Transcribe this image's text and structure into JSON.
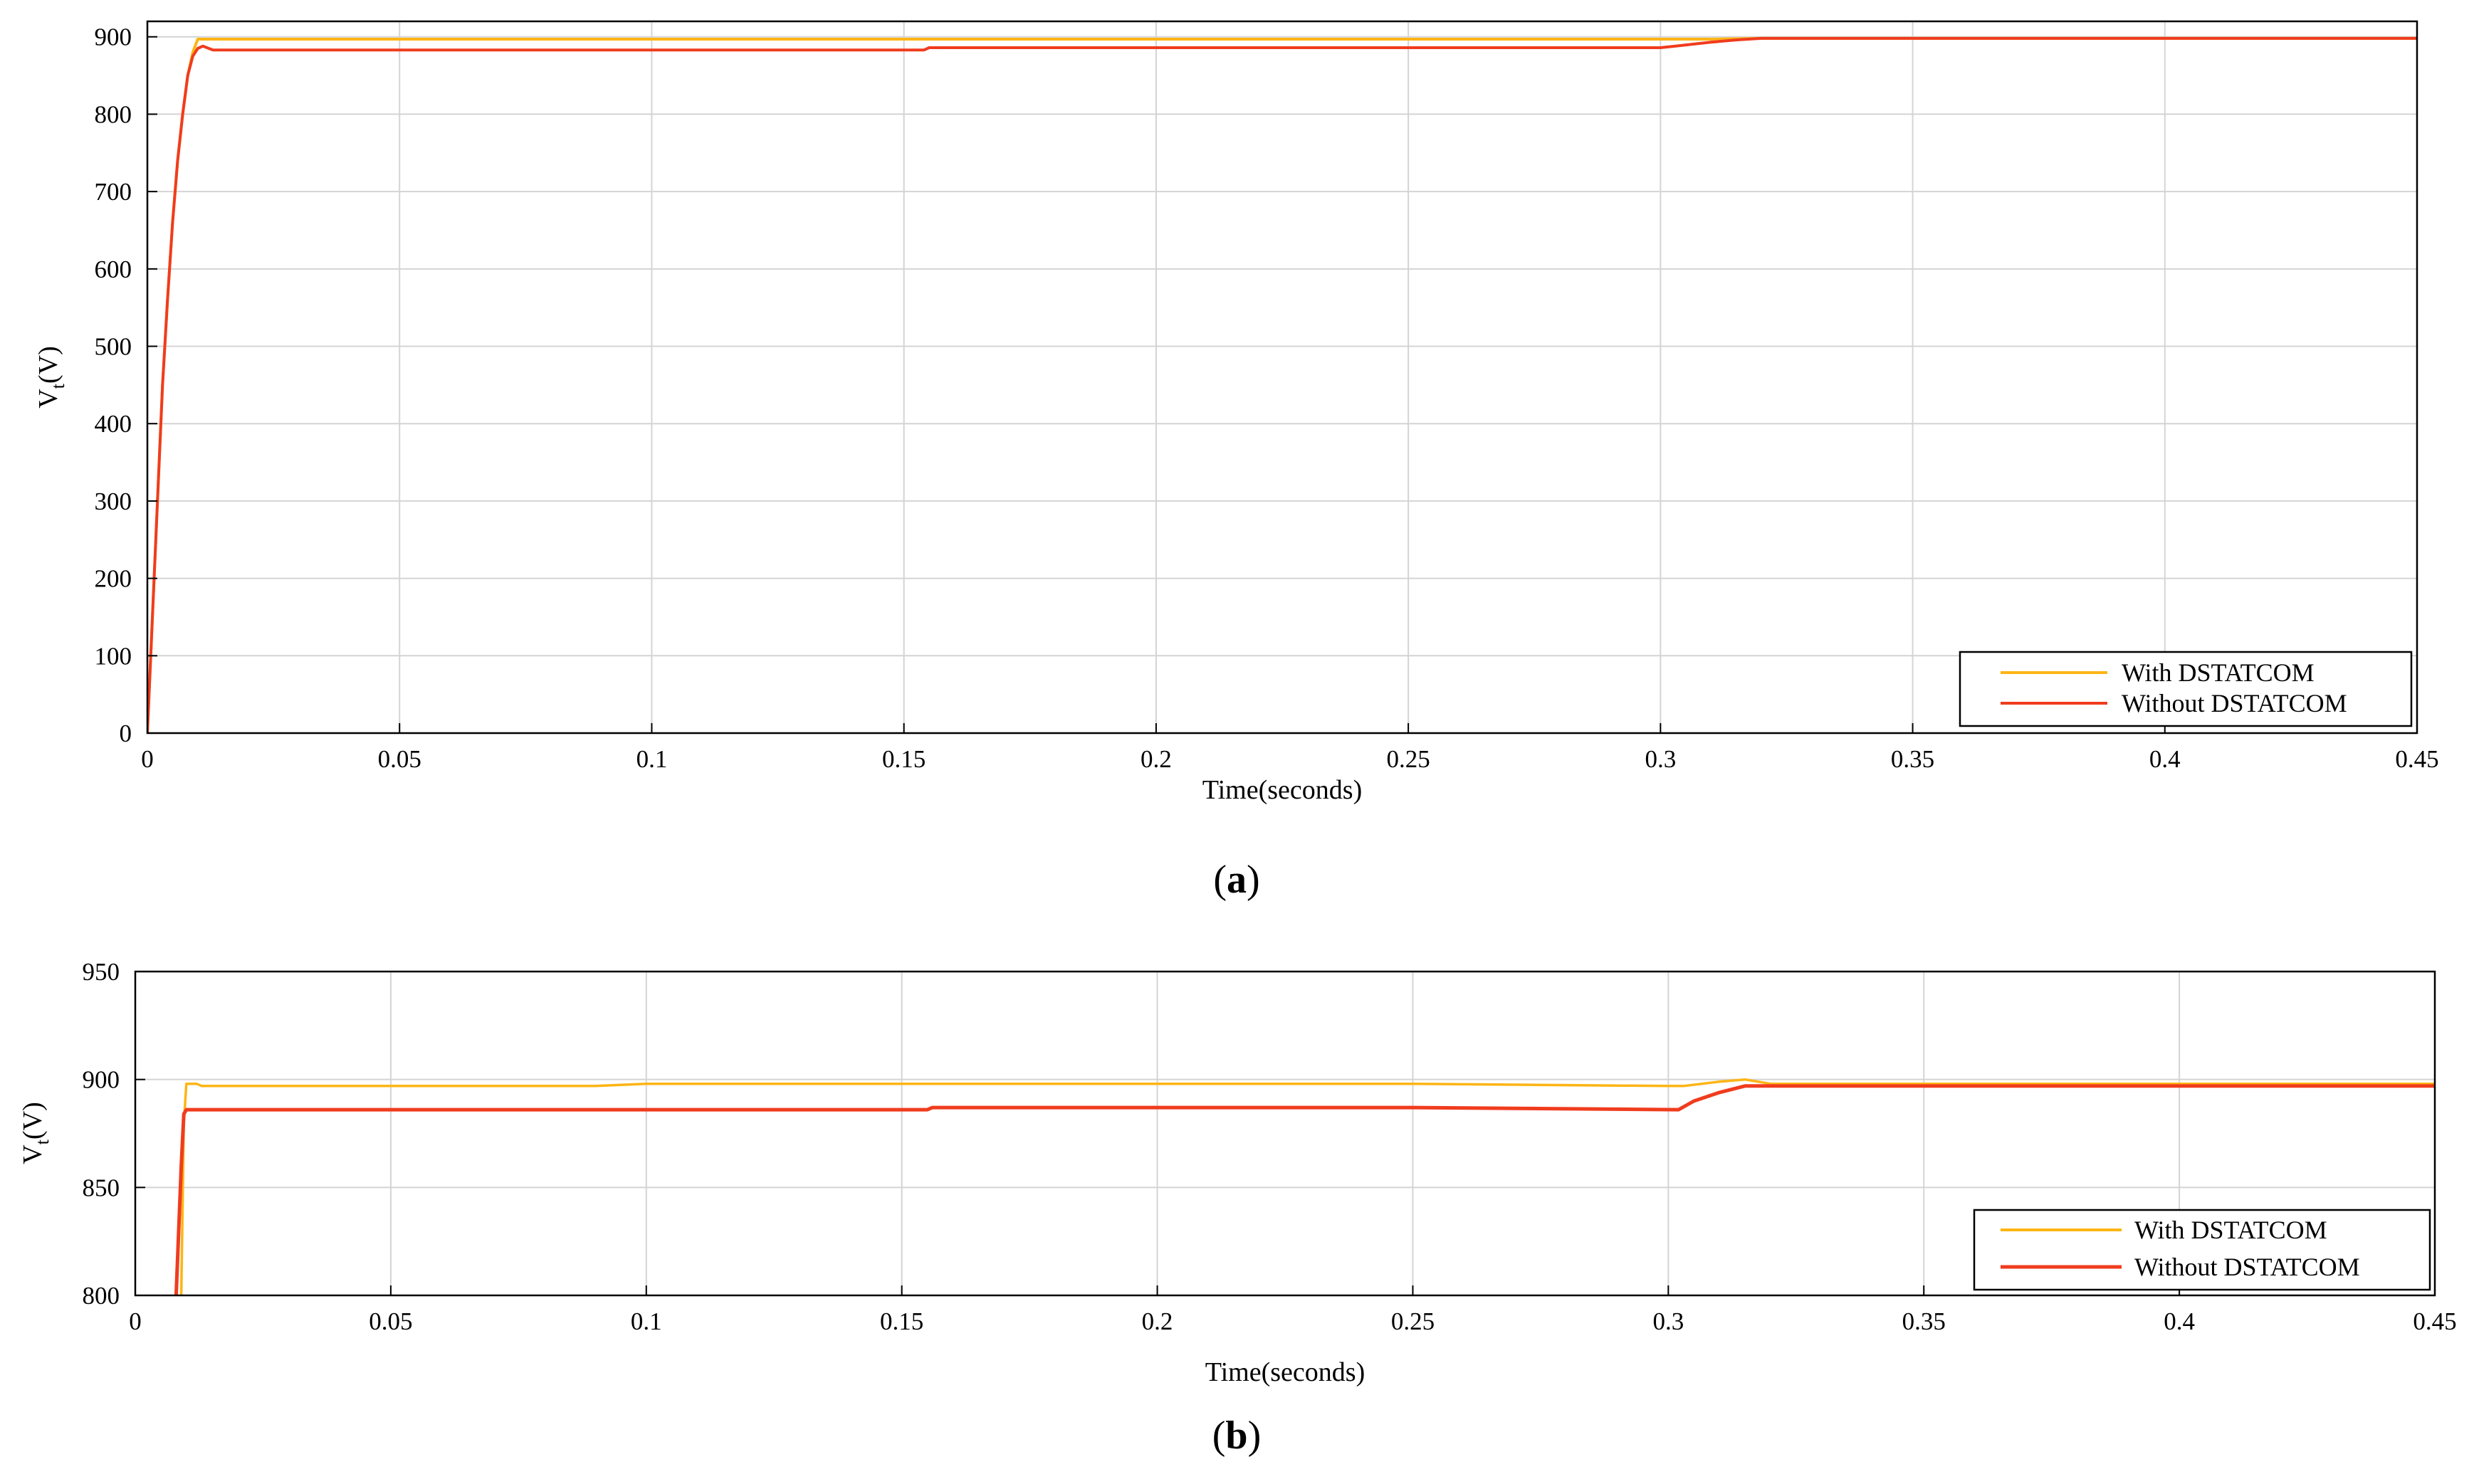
{
  "chart_data": [
    {
      "panel": "a",
      "caption": {
        "open": "(",
        "letter": "a",
        "close": ")"
      },
      "type": "line",
      "xlabel": "Time(seconds)",
      "ylabel": "Vt(V)",
      "ylabel_main": "V",
      "ylabel_sub": "t",
      "ylabel_rest": "(V)",
      "xlim": [
        0,
        0.45
      ],
      "ylim": [
        0,
        920
      ],
      "xticks": [
        0,
        0.05,
        0.1,
        0.15,
        0.2,
        0.25,
        0.3,
        0.35,
        0.4,
        0.45
      ],
      "xtick_labels": [
        "0",
        "0.05",
        "0.1",
        "0.15",
        "0.2",
        "0.25",
        "0.3",
        "0.35",
        "0.4",
        "0.45"
      ],
      "yticks": [
        0,
        100,
        200,
        300,
        400,
        500,
        600,
        700,
        800,
        900
      ],
      "ytick_labels": [
        "0",
        "100",
        "200",
        "300",
        "400",
        "500",
        "600",
        "700",
        "800",
        "900"
      ],
      "grid": true,
      "legend_position": "bottom-right",
      "series": [
        {
          "name": "With DSTATCOM",
          "color": "#FDB515",
          "x": [
            0,
            0.001,
            0.002,
            0.003,
            0.004,
            0.005,
            0.006,
            0.007,
            0.008,
            0.009,
            0.01,
            0.012,
            0.05,
            0.1,
            0.15,
            0.2,
            0.25,
            0.3,
            0.303,
            0.31,
            0.32,
            0.35,
            0.4,
            0.45
          ],
          "y": [
            0,
            150,
            300,
            450,
            560,
            660,
            740,
            800,
            850,
            880,
            897,
            897,
            897,
            897,
            897,
            897,
            897,
            897,
            897,
            897,
            898,
            898,
            898,
            898
          ]
        },
        {
          "name": "Without DSTATCOM",
          "color": "#F03C1E",
          "x": [
            0,
            0.001,
            0.002,
            0.003,
            0.004,
            0.005,
            0.006,
            0.007,
            0.008,
            0.009,
            0.01,
            0.011,
            0.013,
            0.05,
            0.1,
            0.154,
            0.155,
            0.2,
            0.25,
            0.3,
            0.303,
            0.31,
            0.315,
            0.32,
            0.35,
            0.4,
            0.45
          ],
          "y": [
            0,
            150,
            300,
            450,
            560,
            660,
            740,
            800,
            850,
            875,
            885,
            888,
            883,
            883,
            883,
            883,
            886,
            886,
            886,
            886,
            888,
            893,
            896,
            898,
            898,
            898,
            898
          ]
        }
      ]
    },
    {
      "panel": "b",
      "caption": {
        "open": "(",
        "letter": "b",
        "close": ")"
      },
      "type": "line",
      "xlabel": "Time(seconds)",
      "ylabel": "Vt(V)",
      "ylabel_main": "V",
      "ylabel_sub": "t",
      "ylabel_rest": "(V)",
      "xlim": [
        0,
        0.45
      ],
      "ylim": [
        800,
        950
      ],
      "xticks": [
        0,
        0.05,
        0.1,
        0.15,
        0.2,
        0.25,
        0.3,
        0.35,
        0.4,
        0.45
      ],
      "xtick_labels": [
        "0",
        "0.05",
        "0.1",
        "0.15",
        "0.2",
        "0.25",
        "0.3",
        "0.35",
        "0.4",
        "0.45"
      ],
      "yticks": [
        800,
        850,
        900,
        950
      ],
      "ytick_labels": [
        "800",
        "850",
        "900",
        "950"
      ],
      "grid": true,
      "legend_position": "bottom-right",
      "series": [
        {
          "name": "With DSTATCOM",
          "color": "#FDB515",
          "x": [
            0.009,
            0.0095,
            0.01,
            0.012,
            0.013,
            0.05,
            0.09,
            0.1,
            0.15,
            0.2,
            0.25,
            0.3,
            0.303,
            0.31,
            0.315,
            0.32,
            0.35,
            0.4,
            0.45
          ],
          "y": [
            800,
            880,
            898,
            898,
            897,
            897,
            897,
            898,
            898,
            898,
            898,
            897,
            897,
            899,
            900,
            898,
            898,
            898,
            898
          ]
        },
        {
          "name": "Without DSTATCOM",
          "color": "#F03C1E",
          "x": [
            0.008,
            0.009,
            0.0095,
            0.01,
            0.05,
            0.1,
            0.155,
            0.156,
            0.2,
            0.25,
            0.302,
            0.305,
            0.31,
            0.315,
            0.32,
            0.35,
            0.4,
            0.45
          ],
          "y": [
            800,
            860,
            884,
            886,
            886,
            886,
            886,
            887,
            887,
            887,
            886,
            890,
            894,
            897,
            897,
            897,
            897,
            897
          ]
        }
      ]
    }
  ]
}
